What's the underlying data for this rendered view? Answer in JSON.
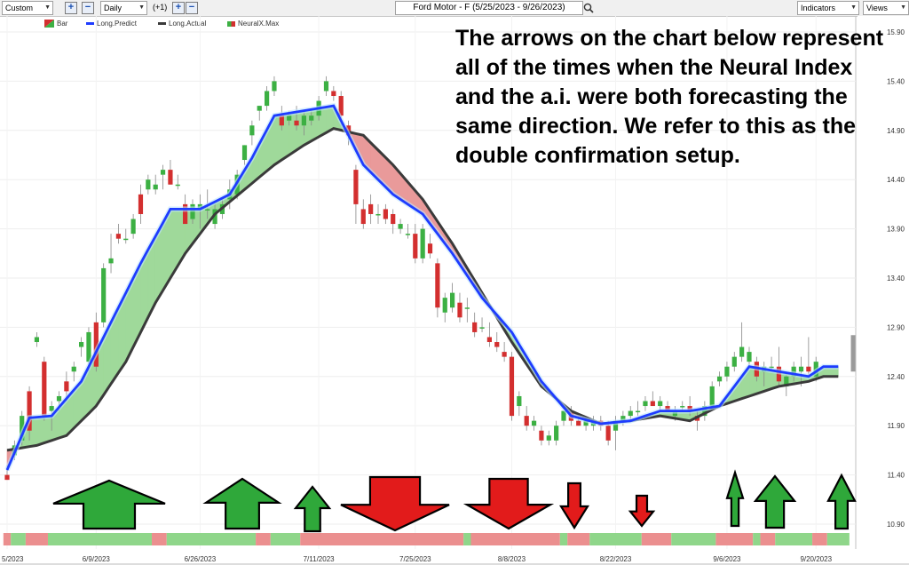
{
  "toolbar": {
    "range_select": "Custom",
    "interval_select": "Daily",
    "offset_label": "(+1)",
    "symbol_field": "Ford Motor - F (5/25/2023 - 9/26/2023)",
    "indicators_button": "Indicators",
    "views_button": "Views"
  },
  "legend": {
    "bar": "Bar",
    "long_predict": "Long.Predict",
    "long_actual": "Long.Actual",
    "neuralx": "NeuralX.Max"
  },
  "annotation": "The arrows on the chart below represent all of the times when the Neural Index and the a.i. were both forecasting the same direction. We refer to this as the double confirmation setup.",
  "colors": {
    "up": "#3cb043",
    "down": "#d32f2f",
    "predict": "#1e3cff",
    "actual": "#3a3a3a",
    "fill_up": "#9fd99a",
    "fill_down": "#e99a9a",
    "strip_up": "#8fd68a",
    "strip_down": "#eb8f8f"
  },
  "chart_data": {
    "type": "line",
    "title": "Ford Motor - F (5/25/2023 - 9/26/2023)",
    "ylim": [
      10.9,
      15.9
    ],
    "yticks": [
      "15.90",
      "15.40",
      "14.90",
      "14.40",
      "13.90",
      "13.40",
      "12.90",
      "12.40",
      "11.90",
      "11.40",
      "10.90"
    ],
    "xticks": [
      "5/2023",
      "6/9/2023",
      "6/26/2023",
      "7/11/2023",
      "7/25/2023",
      "8/8/2023",
      "8/22/2023",
      "9/6/2023",
      "9/20/2023"
    ],
    "candles": [
      [
        11.4,
        11.5,
        11.35,
        11.35
      ],
      [
        11.6,
        11.75,
        11.55,
        11.7
      ],
      [
        11.75,
        12.05,
        11.7,
        12.0
      ],
      [
        12.25,
        12.3,
        11.75,
        11.85
      ],
      [
        12.75,
        12.85,
        12.7,
        12.8
      ],
      [
        12.55,
        12.6,
        11.95,
        12.0
      ],
      [
        12.05,
        12.15,
        11.85,
        12.1
      ],
      [
        12.15,
        12.25,
        12.05,
        12.2
      ],
      [
        12.35,
        12.45,
        12.15,
        12.25
      ],
      [
        12.45,
        12.55,
        12.35,
        12.5
      ],
      [
        12.7,
        12.8,
        12.6,
        12.75
      ],
      [
        12.55,
        12.9,
        12.45,
        12.85
      ],
      [
        12.95,
        13.05,
        12.45,
        12.5
      ],
      [
        12.95,
        13.55,
        12.9,
        13.5
      ],
      [
        13.55,
        13.85,
        13.45,
        13.6
      ],
      [
        13.85,
        13.95,
        13.75,
        13.8
      ],
      [
        13.8,
        13.9,
        13.75,
        13.8
      ],
      [
        13.85,
        14.05,
        13.8,
        14.0
      ],
      [
        14.25,
        14.35,
        13.95,
        14.05
      ],
      [
        14.3,
        14.45,
        14.25,
        14.4
      ],
      [
        14.3,
        14.45,
        14.25,
        14.35
      ],
      [
        14.45,
        14.55,
        14.3,
        14.5
      ],
      [
        14.5,
        14.6,
        14.35,
        14.35
      ],
      [
        14.35,
        14.45,
        14.3,
        14.35
      ],
      [
        14.15,
        14.25,
        13.95,
        13.95
      ],
      [
        14.0,
        14.2,
        13.95,
        14.15
      ],
      [
        14.1,
        14.25,
        13.9,
        14.15
      ],
      [
        14.1,
        14.3,
        14.0,
        14.1
      ],
      [
        13.95,
        14.15,
        13.9,
        14.1
      ],
      [
        14.05,
        14.2,
        14.0,
        14.15
      ],
      [
        14.2,
        14.4,
        14.1,
        14.3
      ],
      [
        14.25,
        14.5,
        14.2,
        14.45
      ],
      [
        14.6,
        14.75,
        14.55,
        14.75
      ],
      [
        14.85,
        15.0,
        14.75,
        14.95
      ],
      [
        15.1,
        15.15,
        15.0,
        15.15
      ],
      [
        15.15,
        15.35,
        15.1,
        15.3
      ],
      [
        15.3,
        15.45,
        15.25,
        15.4
      ],
      [
        15.05,
        15.15,
        14.9,
        14.95
      ],
      [
        15.0,
        15.1,
        14.95,
        15.05
      ],
      [
        15.0,
        15.15,
        14.9,
        14.95
      ],
      [
        14.95,
        15.1,
        14.85,
        15.05
      ],
      [
        15.0,
        15.1,
        14.95,
        15.05
      ],
      [
        15.05,
        15.25,
        15.0,
        15.2
      ],
      [
        15.3,
        15.45,
        15.25,
        15.4
      ],
      [
        15.3,
        15.35,
        15.2,
        15.25
      ],
      [
        15.25,
        15.3,
        14.95,
        15.05
      ],
      [
        14.95,
        15.0,
        14.75,
        14.85
      ],
      [
        14.5,
        14.55,
        13.95,
        14.15
      ],
      [
        14.1,
        14.2,
        13.9,
        13.95
      ],
      [
        14.15,
        14.25,
        13.95,
        14.05
      ],
      [
        14.05,
        14.15,
        13.95,
        14.05
      ],
      [
        14.1,
        14.15,
        13.95,
        14.0
      ],
      [
        14.05,
        14.1,
        13.85,
        13.95
      ],
      [
        13.9,
        14.0,
        13.85,
        13.95
      ],
      [
        13.85,
        13.95,
        13.8,
        13.85
      ],
      [
        13.85,
        13.95,
        13.55,
        13.6
      ],
      [
        13.6,
        13.95,
        13.55,
        13.9
      ],
      [
        13.75,
        13.85,
        13.6,
        13.65
      ],
      [
        13.55,
        13.6,
        13.0,
        13.1
      ],
      [
        13.05,
        13.25,
        12.95,
        13.2
      ],
      [
        13.1,
        13.35,
        13.05,
        13.25
      ],
      [
        13.15,
        13.25,
        12.95,
        13.0
      ],
      [
        13.1,
        13.2,
        12.95,
        13.1
      ],
      [
        12.95,
        13.05,
        12.8,
        12.85
      ],
      [
        12.9,
        13.0,
        12.85,
        12.9
      ],
      [
        12.8,
        12.95,
        12.7,
        12.75
      ],
      [
        12.75,
        12.85,
        12.65,
        12.7
      ],
      [
        12.65,
        12.75,
        12.55,
        12.6
      ],
      [
        12.6,
        12.65,
        11.95,
        12.0
      ],
      [
        12.1,
        12.25,
        12.0,
        12.2
      ],
      [
        12.0,
        12.1,
        11.85,
        11.9
      ],
      [
        11.9,
        12.0,
        11.85,
        11.95
      ],
      [
        11.85,
        11.9,
        11.7,
        11.75
      ],
      [
        11.75,
        11.85,
        11.7,
        11.8
      ],
      [
        11.75,
        11.95,
        11.7,
        11.9
      ],
      [
        11.95,
        12.05,
        11.9,
        12.05
      ],
      [
        12.05,
        12.1,
        11.9,
        11.95
      ],
      [
        11.95,
        12.0,
        11.9,
        11.9
      ],
      [
        11.9,
        11.95,
        11.85,
        11.95
      ],
      [
        11.9,
        12.0,
        11.85,
        11.95
      ],
      [
        11.95,
        12.0,
        11.85,
        11.9
      ],
      [
        11.9,
        11.95,
        11.7,
        11.75
      ],
      [
        11.85,
        12.0,
        11.65,
        11.95
      ],
      [
        11.95,
        12.05,
        11.9,
        12.0
      ],
      [
        12.0,
        12.1,
        11.95,
        12.05
      ],
      [
        12.05,
        12.15,
        12.0,
        12.05
      ],
      [
        12.1,
        12.2,
        12.05,
        12.15
      ],
      [
        12.15,
        12.25,
        12.1,
        12.1
      ],
      [
        12.1,
        12.2,
        12.05,
        12.15
      ],
      [
        12.1,
        12.15,
        12.05,
        12.05
      ],
      [
        12.0,
        12.1,
        11.95,
        12.05
      ],
      [
        12.1,
        12.15,
        12.05,
        12.1
      ],
      [
        12.1,
        12.2,
        12.0,
        12.05
      ],
      [
        12.0,
        12.05,
        11.85,
        11.95
      ],
      [
        12.0,
        12.15,
        11.95,
        12.1
      ],
      [
        12.1,
        12.35,
        12.05,
        12.3
      ],
      [
        12.35,
        12.45,
        12.3,
        12.4
      ],
      [
        12.4,
        12.55,
        12.35,
        12.5
      ],
      [
        12.5,
        12.65,
        12.45,
        12.6
      ],
      [
        12.6,
        12.95,
        12.55,
        12.7
      ],
      [
        12.55,
        12.7,
        12.5,
        12.65
      ],
      [
        12.55,
        12.6,
        12.35,
        12.4
      ],
      [
        12.45,
        12.55,
        12.3,
        12.5
      ],
      [
        12.5,
        12.6,
        12.45,
        12.5
      ],
      [
        12.5,
        12.7,
        12.3,
        12.35
      ],
      [
        12.3,
        12.45,
        12.2,
        12.4
      ],
      [
        12.4,
        12.55,
        12.35,
        12.5
      ],
      [
        12.45,
        12.6,
        12.3,
        12.5
      ],
      [
        12.5,
        12.8,
        12.4,
        12.45
      ],
      [
        12.4,
        12.6,
        12.35,
        12.55
      ]
    ],
    "series": [
      {
        "name": "Long.Predict",
        "x": [
          0,
          3,
          6,
          10,
          14,
          18,
          22,
          26,
          30,
          33,
          36,
          40,
          44,
          48,
          52,
          56,
          60,
          64,
          68,
          72,
          76,
          80,
          84,
          88,
          92,
          96,
          100,
          104,
          108,
          110
        ],
        "values": [
          11.45,
          11.98,
          12.0,
          12.35,
          12.95,
          13.55,
          14.1,
          14.1,
          14.25,
          14.62,
          15.05,
          15.1,
          15.15,
          14.55,
          14.25,
          14.05,
          13.65,
          13.2,
          12.85,
          12.35,
          12.0,
          11.92,
          11.95,
          12.05,
          12.05,
          12.1,
          12.5,
          12.45,
          12.4,
          12.5
        ]
      },
      {
        "name": "Long.Actual",
        "x": [
          0,
          4,
          8,
          12,
          16,
          20,
          24,
          28,
          32,
          36,
          40,
          44,
          48,
          52,
          56,
          60,
          64,
          68,
          72,
          76,
          80,
          84,
          88,
          92,
          96,
          100,
          104,
          108,
          110
        ],
        "values": [
          11.65,
          11.7,
          11.8,
          12.1,
          12.55,
          13.15,
          13.65,
          14.05,
          14.3,
          14.55,
          14.75,
          14.92,
          14.85,
          14.55,
          14.2,
          13.75,
          13.25,
          12.75,
          12.3,
          12.05,
          11.92,
          11.95,
          12.0,
          11.95,
          12.1,
          12.2,
          12.3,
          12.35,
          12.4
        ]
      }
    ],
    "arrows": [
      {
        "dir": "up",
        "size": "large"
      },
      {
        "dir": "up",
        "size": "large"
      },
      {
        "dir": "up",
        "size": "small"
      },
      {
        "dir": "down",
        "size": "large"
      },
      {
        "dir": "down",
        "size": "large"
      },
      {
        "dir": "down",
        "size": "small"
      },
      {
        "dir": "down",
        "size": "small"
      },
      {
        "dir": "up",
        "size": "thin"
      },
      {
        "dir": "up",
        "size": "medium"
      },
      {
        "dir": "up",
        "size": "medium"
      }
    ],
    "strip": [
      {
        "from": 0,
        "to": 1,
        "c": "down"
      },
      {
        "from": 1,
        "to": 3,
        "c": "up"
      },
      {
        "from": 3,
        "to": 6,
        "c": "down"
      },
      {
        "from": 6,
        "to": 20,
        "c": "up"
      },
      {
        "from": 20,
        "to": 22,
        "c": "down"
      },
      {
        "from": 22,
        "to": 34,
        "c": "up"
      },
      {
        "from": 34,
        "to": 36,
        "c": "down"
      },
      {
        "from": 36,
        "to": 40,
        "c": "up"
      },
      {
        "from": 40,
        "to": 62,
        "c": "down"
      },
      {
        "from": 62,
        "to": 63,
        "c": "up"
      },
      {
        "from": 63,
        "to": 75,
        "c": "down"
      },
      {
        "from": 75,
        "to": 76,
        "c": "up"
      },
      {
        "from": 76,
        "to": 79,
        "c": "down"
      },
      {
        "from": 79,
        "to": 86,
        "c": "up"
      },
      {
        "from": 86,
        "to": 90,
        "c": "down"
      },
      {
        "from": 90,
        "to": 96,
        "c": "up"
      },
      {
        "from": 96,
        "to": 101,
        "c": "down"
      },
      {
        "from": 101,
        "to": 102,
        "c": "up"
      },
      {
        "from": 102,
        "to": 104,
        "c": "down"
      },
      {
        "from": 104,
        "to": 109,
        "c": "up"
      },
      {
        "from": 109,
        "to": 111,
        "c": "down"
      },
      {
        "from": 111,
        "to": 114,
        "c": "up"
      }
    ]
  }
}
